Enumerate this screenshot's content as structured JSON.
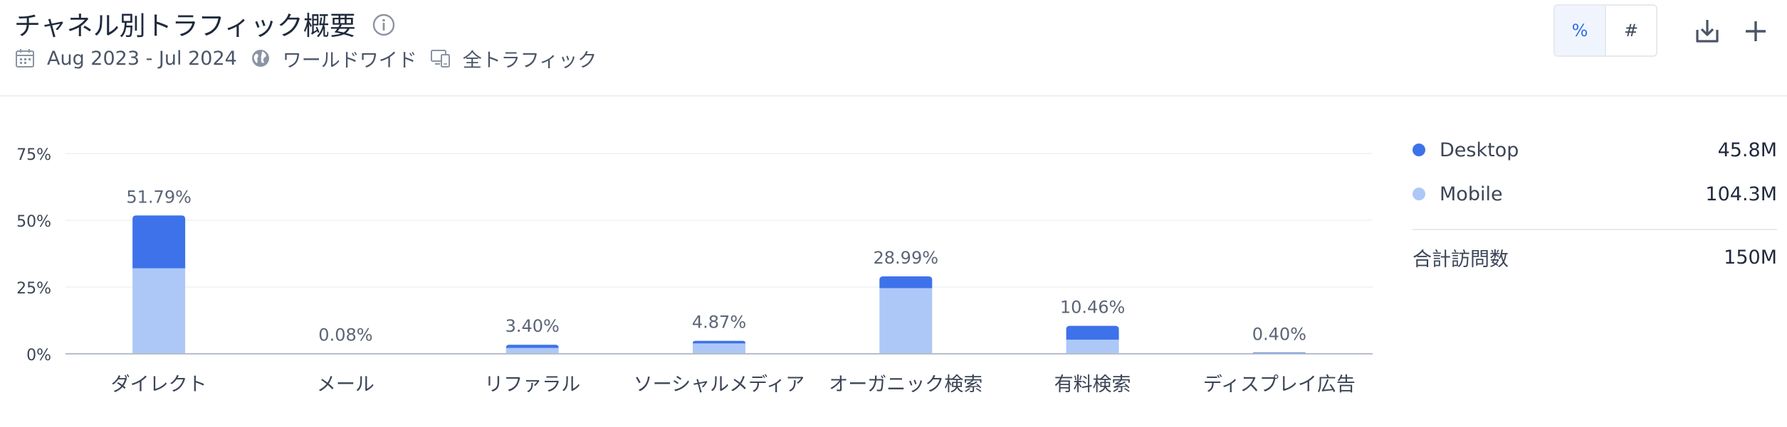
{
  "header": {
    "title": "チャネル別トラフィック概要",
    "date_range": "Aug 2023 - Jul 2024",
    "region": "ワールドワイド",
    "traffic_type": "全トラフィック",
    "toggle": {
      "percent": "%",
      "count": "#",
      "selected": "percent"
    },
    "icons": {
      "info": "info-icon",
      "calendar": "calendar-icon",
      "globe": "globe-icon",
      "devices": "devices-icon",
      "download": "download-icon",
      "add": "plus-icon"
    }
  },
  "legend": {
    "items": [
      {
        "label": "Desktop",
        "value": "45.8M",
        "color": "#3d72ea"
      },
      {
        "label": "Mobile",
        "value": "104.3M",
        "color": "#adc8f7"
      }
    ],
    "total_label": "合計訪問数",
    "total_value": "150M"
  },
  "chart_data": {
    "type": "bar",
    "stacked": true,
    "categories": [
      "ダイレクト",
      "メール",
      "リファラル",
      "ソーシャルメディア",
      "オーガニック検索",
      "有料検索",
      "ディスプレイ広告"
    ],
    "totals": [
      51.79,
      0.08,
      3.4,
      4.87,
      28.99,
      10.46,
      0.4
    ],
    "total_labels": [
      "51.79%",
      "0.08%",
      "3.40%",
      "4.87%",
      "28.99%",
      "10.46%",
      "0.40%"
    ],
    "series": [
      {
        "name": "Mobile",
        "color": "#adc8f7",
        "values": [
          32.0,
          0.06,
          2.2,
          3.9,
          24.6,
          5.3,
          0.32
        ]
      },
      {
        "name": "Desktop",
        "color": "#3d72ea",
        "values": [
          19.79,
          0.02,
          1.2,
          0.97,
          4.39,
          5.16,
          0.08
        ]
      }
    ],
    "yticks": [
      0,
      25,
      50,
      75
    ],
    "ytick_labels": [
      "0%",
      "25%",
      "50%",
      "75%"
    ],
    "ylim": [
      0,
      75
    ],
    "grid": true,
    "legend_position": "right"
  }
}
